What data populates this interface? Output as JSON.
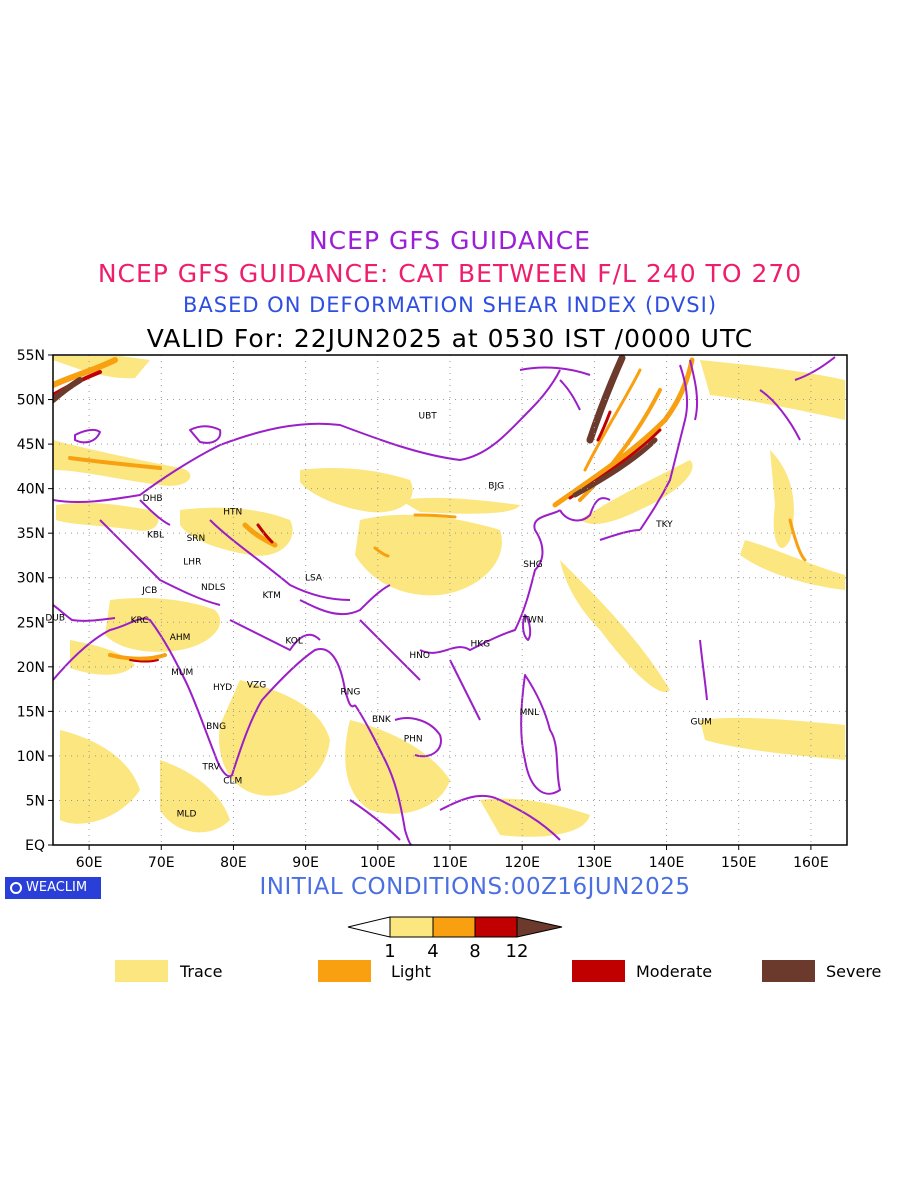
{
  "titles": {
    "line1": "NCEP GFS GUIDANCE",
    "line2": "NCEP GFS GUIDANCE: CAT BETWEEN F/L 240 TO 270",
    "line3": "BASED ON DEFORMATION SHEAR INDEX (DVSI)",
    "line4": "VALID For: 22JUN2025 at 0530 IST /0000 UTC"
  },
  "colors": {
    "title1": "#9b1fd6",
    "title2": "#ee1e6c",
    "title3": "#2d4ee0",
    "initial": "#4a6fe0",
    "coast": "#9b1fc8",
    "trace": "#fce680",
    "light": "#f8a010",
    "moderate": "#c00000",
    "severe": "#6b3a2c",
    "logo_bg": "#2a3fd8"
  },
  "map": {
    "lat_ticks": [
      "EQ",
      "5N",
      "10N",
      "15N",
      "20N",
      "25N",
      "30N",
      "35N",
      "40N",
      "45N",
      "50N",
      "55N"
    ],
    "lon_ticks": [
      "60E",
      "70E",
      "80E",
      "90E",
      "100E",
      "110E",
      "120E",
      "130E",
      "140E",
      "150E",
      "160E"
    ],
    "lat_range": [
      0,
      55
    ],
    "lon_range": [
      55,
      165
    ],
    "stations": [
      {
        "code": "UBT",
        "lon": 106.9,
        "lat": 47.9
      },
      {
        "code": "BJG",
        "lon": 116.4,
        "lat": 40.0
      },
      {
        "code": "TKY",
        "lon": 139.7,
        "lat": 35.7
      },
      {
        "code": "DHB",
        "lon": 68.8,
        "lat": 38.6
      },
      {
        "code": "HTN",
        "lon": 79.9,
        "lat": 37.1
      },
      {
        "code": "KBL",
        "lon": 69.2,
        "lat": 34.5
      },
      {
        "code": "SRN",
        "lon": 74.8,
        "lat": 34.1
      },
      {
        "code": "LHR",
        "lon": 74.3,
        "lat": 31.5
      },
      {
        "code": "SHG",
        "lon": 121.5,
        "lat": 31.2
      },
      {
        "code": "LSA",
        "lon": 91.1,
        "lat": 29.7
      },
      {
        "code": "JCB",
        "lon": 68.4,
        "lat": 28.3
      },
      {
        "code": "NDLS",
        "lon": 77.2,
        "lat": 28.6
      },
      {
        "code": "KTM",
        "lon": 85.3,
        "lat": 27.7
      },
      {
        "code": "DUB",
        "lon": 55.3,
        "lat": 25.2
      },
      {
        "code": "KRC",
        "lon": 67.0,
        "lat": 24.9
      },
      {
        "code": "TWN",
        "lon": 121.5,
        "lat": 25.0
      },
      {
        "code": "AHM",
        "lon": 72.6,
        "lat": 23.0
      },
      {
        "code": "KOL",
        "lon": 88.4,
        "lat": 22.6
      },
      {
        "code": "HKG",
        "lon": 114.2,
        "lat": 22.3
      },
      {
        "code": "HNO",
        "lon": 105.8,
        "lat": 21.0
      },
      {
        "code": "MUM",
        "lon": 72.9,
        "lat": 19.1
      },
      {
        "code": "HYD",
        "lon": 78.5,
        "lat": 17.4
      },
      {
        "code": "VZG",
        "lon": 83.2,
        "lat": 17.7
      },
      {
        "code": "RNG",
        "lon": 96.2,
        "lat": 16.9
      },
      {
        "code": "MNL",
        "lon": 121.0,
        "lat": 14.6
      },
      {
        "code": "GUM",
        "lon": 144.8,
        "lat": 13.5
      },
      {
        "code": "BNK",
        "lon": 100.5,
        "lat": 13.8
      },
      {
        "code": "PHN",
        "lon": 104.9,
        "lat": 11.6
      },
      {
        "code": "BNG",
        "lon": 77.6,
        "lat": 13.0
      },
      {
        "code": "TRV",
        "lon": 76.9,
        "lat": 8.5
      },
      {
        "code": "CLM",
        "lon": 79.9,
        "lat": 6.9
      },
      {
        "code": "MLD",
        "lon": 73.5,
        "lat": 3.2
      }
    ]
  },
  "initial_conditions": "INITIAL CONDITIONS:00Z16JUN2025",
  "logo_text": "WEACLIM",
  "colorbar": {
    "ticks": [
      "1",
      "4",
      "8",
      "12"
    ]
  },
  "legend": [
    {
      "label": "Trace",
      "color": "#fce680"
    },
    {
      "label": "Light",
      "color": "#f8a010"
    },
    {
      "label": "Moderate",
      "color": "#c00000"
    },
    {
      "label": "Severe",
      "color": "#6b3a2c"
    }
  ]
}
